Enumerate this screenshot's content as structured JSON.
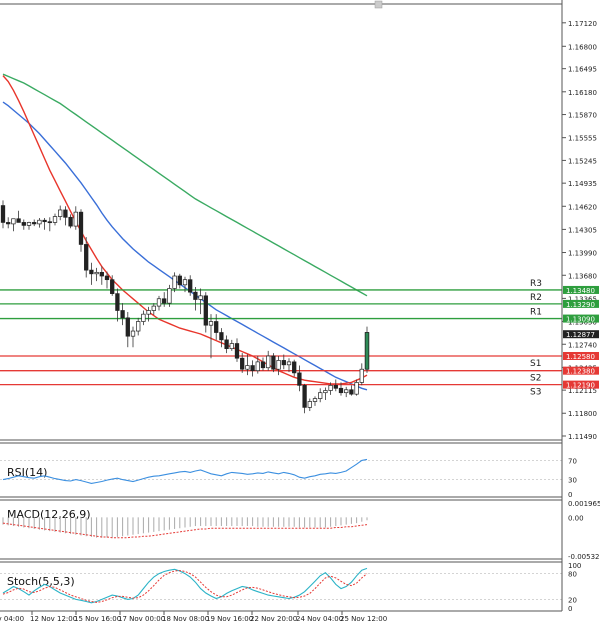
{
  "chart_data": {
    "type": "candlestick",
    "colors": {
      "bull": "#2e8b57",
      "bear": "#d32f2f",
      "ma_fast": "#e8352b",
      "ma_mid": "#3a6fd8",
      "ma_slow": "#3aaa62",
      "support": "#e53935",
      "resistance": "#2e9e3e",
      "rsi": "#3b8fe0",
      "macd_signal": "#e53935",
      "stoch_k": "#2bb3c7",
      "stoch_d": "#e53935",
      "current": "#222222"
    },
    "price": {
      "ylim": [
        1.1149,
        1.1724
      ],
      "ticks": [
        "1.17120",
        "1.16800",
        "1.16495",
        "1.16180",
        "1.15870",
        "1.15555",
        "1.15245",
        "1.14935",
        "1.14620",
        "1.14305",
        "1.13990",
        "1.13680",
        "1.13365",
        "1.13050",
        "1.12740",
        "1.12425",
        "1.12115",
        "1.11800",
        "1.11490"
      ],
      "current_label": "1.12877",
      "current_value": 1.12877,
      "pivots": [
        {
          "name": "R3",
          "value": 1.1348,
          "label": "1.13480",
          "kind": "resistance"
        },
        {
          "name": "R2",
          "value": 1.1329,
          "label": "1.13290",
          "kind": "resistance"
        },
        {
          "name": "R1",
          "value": 1.1309,
          "label": "1.13090",
          "kind": "resistance"
        },
        {
          "name": "S1",
          "value": 1.1258,
          "label": "1.12580",
          "kind": "support"
        },
        {
          "name": "S2",
          "value": 1.1238,
          "label": "1.12380",
          "kind": "support"
        },
        {
          "name": "S3",
          "value": 1.1219,
          "label": "1.12190",
          "kind": "support"
        }
      ],
      "candles": [
        [
          1.1463,
          1.147,
          1.1432,
          1.144
        ],
        [
          1.144,
          1.1447,
          1.1432,
          1.1438
        ],
        [
          1.1438,
          1.1442,
          1.1428,
          1.1445
        ],
        [
          1.1445,
          1.1456,
          1.144,
          1.144
        ],
        [
          1.144,
          1.1444,
          1.143,
          1.1436
        ],
        [
          1.1436,
          1.1441,
          1.143,
          1.144
        ],
        [
          1.144,
          1.1444,
          1.1435,
          1.1438
        ],
        [
          1.1438,
          1.1446,
          1.1433,
          1.1443
        ],
        [
          1.1443,
          1.1446,
          1.143,
          1.1441
        ],
        [
          1.1441,
          1.1447,
          1.1428,
          1.144
        ],
        [
          1.144,
          1.1452,
          1.1436,
          1.1448
        ],
        [
          1.1448,
          1.1463,
          1.1443,
          1.1457
        ],
        [
          1.1457,
          1.1462,
          1.1436,
          1.1447
        ],
        [
          1.1447,
          1.1451,
          1.1432,
          1.1435
        ],
        [
          1.1435,
          1.1462,
          1.143,
          1.1454
        ],
        [
          1.1454,
          1.1458,
          1.14,
          1.141
        ],
        [
          1.141,
          1.142,
          1.1365,
          1.1375
        ],
        [
          1.1375,
          1.1385,
          1.1355,
          1.137
        ],
        [
          1.137,
          1.1378,
          1.136,
          1.1372
        ],
        [
          1.1372,
          1.138,
          1.1355,
          1.1367
        ],
        [
          1.1367,
          1.1373,
          1.135,
          1.1362
        ],
        [
          1.1362,
          1.1368,
          1.134,
          1.1343
        ],
        [
          1.1343,
          1.135,
          1.1305,
          1.132
        ],
        [
          1.132,
          1.133,
          1.13,
          1.131
        ],
        [
          1.131,
          1.1318,
          1.127,
          1.1285
        ],
        [
          1.1285,
          1.1298,
          1.127,
          1.1292
        ],
        [
          1.1292,
          1.131,
          1.1286,
          1.1305
        ],
        [
          1.1305,
          1.132,
          1.13,
          1.1315
        ],
        [
          1.1315,
          1.1325,
          1.1305,
          1.132
        ],
        [
          1.132,
          1.133,
          1.1314,
          1.1326
        ],
        [
          1.1326,
          1.134,
          1.132,
          1.1336
        ],
        [
          1.1336,
          1.1345,
          1.1325,
          1.133
        ],
        [
          1.133,
          1.1355,
          1.1325,
          1.135
        ],
        [
          1.135,
          1.1372,
          1.1345,
          1.1367
        ],
        [
          1.1367,
          1.137,
          1.135,
          1.1355
        ],
        [
          1.1355,
          1.1366,
          1.1345,
          1.1362
        ],
        [
          1.1362,
          1.1368,
          1.134,
          1.1345
        ],
        [
          1.1345,
          1.1352,
          1.132,
          1.1335
        ],
        [
          1.1335,
          1.135,
          1.1315,
          1.134
        ],
        [
          1.134,
          1.1345,
          1.129,
          1.13
        ],
        [
          1.13,
          1.1315,
          1.1255,
          1.1305
        ],
        [
          1.1305,
          1.1315,
          1.128,
          1.129
        ],
        [
          1.129,
          1.1296,
          1.127,
          1.128
        ],
        [
          1.128,
          1.1286,
          1.1262,
          1.1268
        ],
        [
          1.1268,
          1.128,
          1.1265,
          1.1275
        ],
        [
          1.1275,
          1.1282,
          1.125,
          1.1255
        ],
        [
          1.1255,
          1.1262,
          1.1235,
          1.124
        ],
        [
          1.124,
          1.126,
          1.1232,
          1.1245
        ],
        [
          1.1245,
          1.1252,
          1.123,
          1.1238
        ],
        [
          1.1238,
          1.1258,
          1.1234,
          1.125
        ],
        [
          1.125,
          1.1256,
          1.1238,
          1.1242
        ],
        [
          1.1242,
          1.1265,
          1.1238,
          1.1258
        ],
        [
          1.1258,
          1.1262,
          1.1236,
          1.124
        ],
        [
          1.124,
          1.1258,
          1.1232,
          1.1252
        ],
        [
          1.1252,
          1.126,
          1.124,
          1.1246
        ],
        [
          1.1246,
          1.1255,
          1.1236,
          1.125
        ],
        [
          1.125,
          1.1253,
          1.123,
          1.1235
        ],
        [
          1.1235,
          1.1245,
          1.121,
          1.1218
        ],
        [
          1.1218,
          1.122,
          1.118,
          1.1188
        ],
        [
          1.1188,
          1.12,
          1.1183,
          1.1196
        ],
        [
          1.1196,
          1.1203,
          1.119,
          1.12
        ],
        [
          1.12,
          1.1214,
          1.1195,
          1.1208
        ],
        [
          1.1208,
          1.1215,
          1.1198,
          1.1211
        ],
        [
          1.1211,
          1.1222,
          1.1205,
          1.1218
        ],
        [
          1.1218,
          1.1226,
          1.121,
          1.1214
        ],
        [
          1.1214,
          1.1222,
          1.1204,
          1.1208
        ],
        [
          1.1208,
          1.1216,
          1.1202,
          1.1212
        ],
        [
          1.1212,
          1.1218,
          1.1204,
          1.1206
        ],
        [
          1.1206,
          1.1226,
          1.1204,
          1.1222
        ],
        [
          1.1222,
          1.1248,
          1.1218,
          1.124
        ],
        [
          1.124,
          1.1298,
          1.1235,
          1.129
        ]
      ],
      "ma_fast": [
        1.164,
        1.1632,
        1.162,
        1.1606,
        1.1591,
        1.1575,
        1.1559,
        1.1543,
        1.1527,
        1.1511,
        1.1497,
        1.1483,
        1.1469,
        1.1455,
        1.1441,
        1.1428,
        1.1415,
        1.1403,
        1.1391,
        1.138,
        1.1371,
        1.1362,
        1.1355,
        1.1348,
        1.1342,
        1.1336,
        1.133,
        1.1324,
        1.1318,
        1.1313,
        1.1308,
        1.1305,
        1.1302,
        1.1299,
        1.1296,
        1.1294,
        1.1292,
        1.129,
        1.1288,
        1.1285,
        1.1282,
        1.1279,
        1.1276,
        1.1273,
        1.127,
        1.1267,
        1.1264,
        1.1261,
        1.1258,
        1.1254,
        1.125,
        1.1246,
        1.1242,
        1.1238,
        1.1235,
        1.1232,
        1.1229,
        1.1227,
        1.1225,
        1.1224,
        1.1223,
        1.1222,
        1.1221,
        1.122,
        1.122,
        1.122,
        1.1221,
        1.1222,
        1.1225,
        1.1228,
        1.1232
      ],
      "ma_mid": [
        1.1604,
        1.1599,
        1.1593,
        1.1587,
        1.1581,
        1.1575,
        1.1568,
        1.1561,
        1.1553,
        1.1545,
        1.1537,
        1.1529,
        1.1521,
        1.1512,
        1.1503,
        1.1494,
        1.1484,
        1.1474,
        1.1464,
        1.1453,
        1.1443,
        1.1434,
        1.1426,
        1.1418,
        1.1411,
        1.1404,
        1.1398,
        1.1392,
        1.1386,
        1.1381,
        1.1376,
        1.1371,
        1.1366,
        1.1361,
        1.1356,
        1.1351,
        1.1346,
        1.1341,
        1.1336,
        1.1331,
        1.1326,
        1.1321,
        1.1317,
        1.1313,
        1.1309,
        1.1305,
        1.1301,
        1.1297,
        1.1293,
        1.1289,
        1.1285,
        1.1281,
        1.1277,
        1.1273,
        1.1269,
        1.1265,
        1.1261,
        1.1257,
        1.1253,
        1.1249,
        1.1245,
        1.1241,
        1.1237,
        1.1233,
        1.1229,
        1.1226,
        1.1223,
        1.122,
        1.1217,
        1.1214,
        1.1212
      ],
      "ma_slow": [
        1.1642,
        1.1639,
        1.1636,
        1.1633,
        1.163,
        1.1626,
        1.1622,
        1.1618,
        1.1614,
        1.161,
        1.1606,
        1.1602,
        1.1597,
        1.1592,
        1.1587,
        1.1582,
        1.1577,
        1.1572,
        1.1567,
        1.1562,
        1.1557,
        1.1552,
        1.1547,
        1.1542,
        1.1537,
        1.1532,
        1.1527,
        1.1522,
        1.1517,
        1.1512,
        1.1507,
        1.1502,
        1.1497,
        1.1492,
        1.1487,
        1.1482,
        1.1477,
        1.1472,
        1.1468,
        1.1464,
        1.146,
        1.1456,
        1.1452,
        1.1448,
        1.1444,
        1.144,
        1.1436,
        1.1432,
        1.1428,
        1.1424,
        1.142,
        1.1416,
        1.1412,
        1.1408,
        1.1404,
        1.14,
        1.1396,
        1.1392,
        1.1388,
        1.1384,
        1.138,
        1.1376,
        1.1372,
        1.1368,
        1.1364,
        1.136,
        1.1356,
        1.1352,
        1.1348,
        1.1344,
        1.134
      ],
      "x_labels": [
        "Nov 04:00",
        "12 Nov 12:00",
        "15 Nov 16:00",
        "17 Nov 00:00",
        "18 Nov 08:00",
        "19 Nov 16:00",
        "22 Nov 20:00",
        "24 Nov 04:00",
        "25 Nov 12:00"
      ]
    },
    "rsi": {
      "label": "RSI(14)",
      "ylim": [
        0,
        100
      ],
      "ticks": [
        "70",
        "30",
        "0"
      ],
      "tick_values": [
        70,
        30,
        0
      ],
      "values": [
        30,
        32,
        35,
        38,
        36,
        34,
        33,
        36,
        38,
        35,
        32,
        30,
        28,
        27,
        30,
        28,
        25,
        22,
        24,
        26,
        29,
        31,
        33,
        30,
        28,
        26,
        29,
        32,
        35,
        37,
        38,
        40,
        42,
        44,
        46,
        47,
        45,
        48,
        50,
        46,
        42,
        40,
        38,
        42,
        45,
        44,
        43,
        41,
        42,
        44,
        43,
        46,
        44,
        42,
        45,
        43,
        40,
        35,
        33,
        36,
        38,
        41,
        42,
        44,
        43,
        45,
        48,
        55,
        62,
        70,
        72
      ]
    },
    "macd": {
      "label": "MACD(12,26,9)",
      "ylim": [
        -0.00532,
        0.00197
      ],
      "ticks": [
        "0.001965",
        "0.00",
        "-0.005325"
      ],
      "tick_values": [
        0.001965,
        0.0,
        -0.005325
      ],
      "histogram": [
        -0.001,
        -0.0011,
        -0.0012,
        -0.0013,
        -0.0014,
        -0.0015,
        -0.0016,
        -0.0017,
        -0.0018,
        -0.0019,
        -0.002,
        -0.0021,
        -0.0022,
        -0.0023,
        -0.0024,
        -0.0025,
        -0.0026,
        -0.0027,
        -0.0028,
        -0.0028,
        -0.0028,
        -0.0028,
        -0.0027,
        -0.0026,
        -0.0025,
        -0.0024,
        -0.0023,
        -0.0022,
        -0.0021,
        -0.002,
        -0.0019,
        -0.0018,
        -0.0017,
        -0.0016,
        -0.0015,
        -0.0014,
        -0.0013,
        -0.0012,
        -0.0012,
        -0.0012,
        -0.0012,
        -0.0012,
        -0.0012,
        -0.0012,
        -0.0012,
        -0.0012,
        -0.0012,
        -0.0012,
        -0.0012,
        -0.0013,
        -0.0013,
        -0.0013,
        -0.0013,
        -0.0013,
        -0.0013,
        -0.0013,
        -0.0013,
        -0.0014,
        -0.0014,
        -0.0014,
        -0.0014,
        -0.0014,
        -0.0014,
        -0.0013,
        -0.0012,
        -0.0011,
        -0.001,
        -0.0009,
        -0.0008,
        -0.0006,
        -0.0004
      ],
      "signal": [
        -0.0008,
        -0.0009,
        -0.001,
        -0.0011,
        -0.0012,
        -0.0013,
        -0.0014,
        -0.0015,
        -0.0016,
        -0.0017,
        -0.0018,
        -0.0019,
        -0.002,
        -0.0021,
        -0.0022,
        -0.0023,
        -0.0024,
        -0.0025,
        -0.0026,
        -0.0027,
        -0.0027,
        -0.0028,
        -0.0028,
        -0.0028,
        -0.0028,
        -0.0027,
        -0.0027,
        -0.0026,
        -0.0026,
        -0.0025,
        -0.0024,
        -0.0023,
        -0.0022,
        -0.0021,
        -0.002,
        -0.0019,
        -0.0018,
        -0.0017,
        -0.0016,
        -0.0016,
        -0.0015,
        -0.0015,
        -0.0015,
        -0.0015,
        -0.0015,
        -0.0015,
        -0.0015,
        -0.0015,
        -0.0015,
        -0.0015,
        -0.0015,
        -0.0015,
        -0.0015,
        -0.0015,
        -0.0015,
        -0.0015,
        -0.0015,
        -0.0015,
        -0.0015,
        -0.0015,
        -0.0015,
        -0.0015,
        -0.0015,
        -0.0015,
        -0.0014,
        -0.0014,
        -0.0013,
        -0.0013,
        -0.0012,
        -0.0011,
        -0.001
      ]
    },
    "stoch": {
      "label": "Stoch(5,5,3)",
      "ylim": [
        0,
        100
      ],
      "ticks": [
        "100",
        "80",
        "20",
        "0"
      ],
      "tick_values": [
        100,
        80,
        20,
        0
      ],
      "k": [
        35,
        42,
        50,
        45,
        38,
        30,
        40,
        48,
        55,
        50,
        42,
        35,
        30,
        25,
        20,
        18,
        15,
        12,
        15,
        20,
        25,
        30,
        28,
        24,
        20,
        22,
        30,
        45,
        60,
        72,
        80,
        85,
        88,
        90,
        86,
        80,
        72,
        60,
        45,
        35,
        28,
        22,
        26,
        34,
        40,
        45,
        50,
        48,
        42,
        38,
        34,
        30,
        28,
        26,
        24,
        22,
        25,
        30,
        38,
        50,
        62,
        75,
        82,
        70,
        55,
        45,
        50,
        60,
        75,
        88,
        92
      ],
      "d": [
        32,
        36,
        42,
        46,
        44,
        38,
        36,
        40,
        46,
        50,
        48,
        42,
        36,
        30,
        26,
        22,
        18,
        15,
        13,
        15,
        19,
        24,
        27,
        27,
        25,
        23,
        24,
        30,
        40,
        52,
        65,
        76,
        82,
        86,
        87,
        85,
        80,
        72,
        60,
        48,
        38,
        30,
        26,
        26,
        30,
        36,
        42,
        47,
        48,
        46,
        42,
        38,
        34,
        31,
        28,
        26,
        24,
        25,
        28,
        34,
        45,
        58,
        70,
        74,
        70,
        62,
        55,
        52,
        58,
        70,
        80
      ]
    }
  }
}
